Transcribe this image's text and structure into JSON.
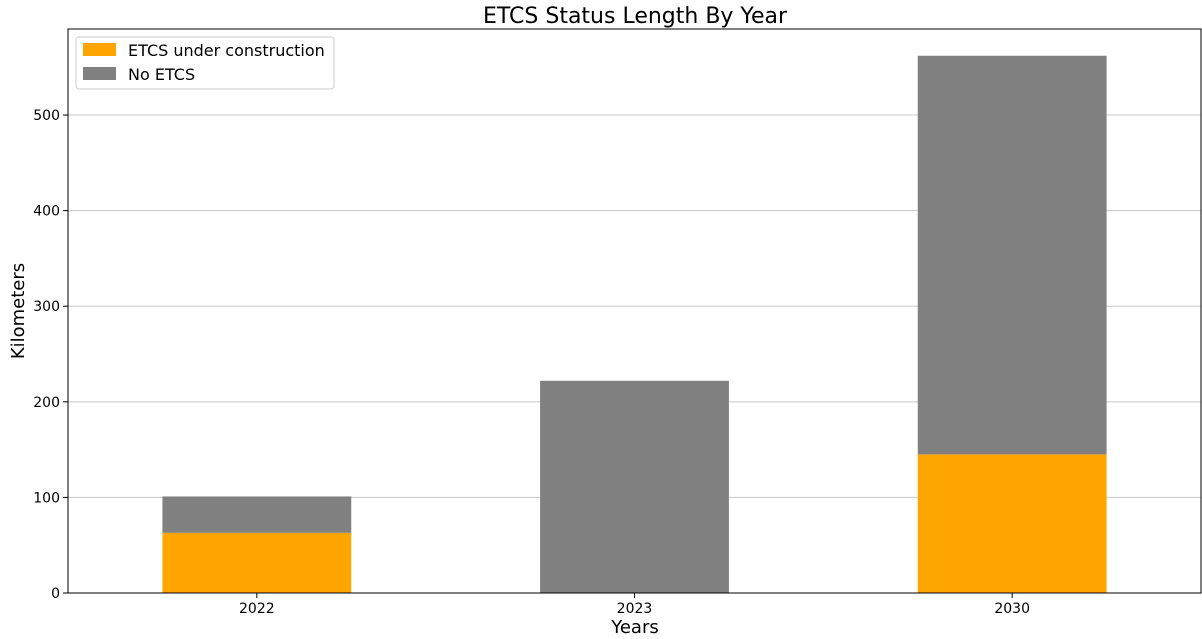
{
  "chart_data": {
    "type": "bar",
    "stacked": true,
    "title": "ETCS Status Length By Year",
    "xlabel": "Years",
    "ylabel": "Kilometers",
    "categories": [
      "2022",
      "2023",
      "2030"
    ],
    "series": [
      {
        "name": "ETCS under construction",
        "values": [
          63,
          0,
          145
        ],
        "color": "#ffa500"
      },
      {
        "name": "No ETCS",
        "values": [
          38,
          222,
          417
        ],
        "color": "#808080"
      }
    ],
    "ylim": [
      0,
      590
    ],
    "yticks": [
      0,
      100,
      200,
      300,
      400,
      500
    ],
    "grid": "horizontal",
    "legend": "top-left"
  }
}
